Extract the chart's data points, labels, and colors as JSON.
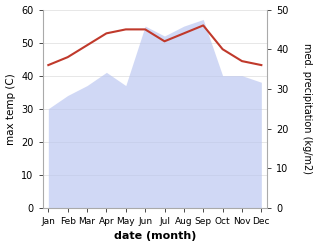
{
  "months": [
    "Jan",
    "Feb",
    "Mar",
    "Apr",
    "May",
    "Jun",
    "Jul",
    "Aug",
    "Sep",
    "Oct",
    "Nov",
    "Dec"
  ],
  "max_temp": [
    30,
    34,
    37,
    41,
    37,
    55,
    52,
    55,
    57,
    40,
    40,
    38
  ],
  "precipitation": [
    36,
    38,
    41,
    44,
    45,
    45,
    42,
    44,
    46,
    40,
    37,
    36
  ],
  "temp_fill_color": "#b8c4f0",
  "temp_line_color": "#b8c4f0",
  "precip_line_color": "#c0392b",
  "temp_ylim": [
    0,
    60
  ],
  "precip_ylim": [
    0,
    50
  ],
  "xlabel": "date (month)",
  "ylabel_left": "max temp (C)",
  "ylabel_right": "med. precipitation (kg/m2)",
  "yticks_left": [
    0,
    10,
    20,
    30,
    40,
    50,
    60
  ],
  "yticks_right": [
    0,
    10,
    20,
    30,
    40,
    50
  ],
  "background_color": "#ffffff",
  "grid_color": "#dddddd"
}
